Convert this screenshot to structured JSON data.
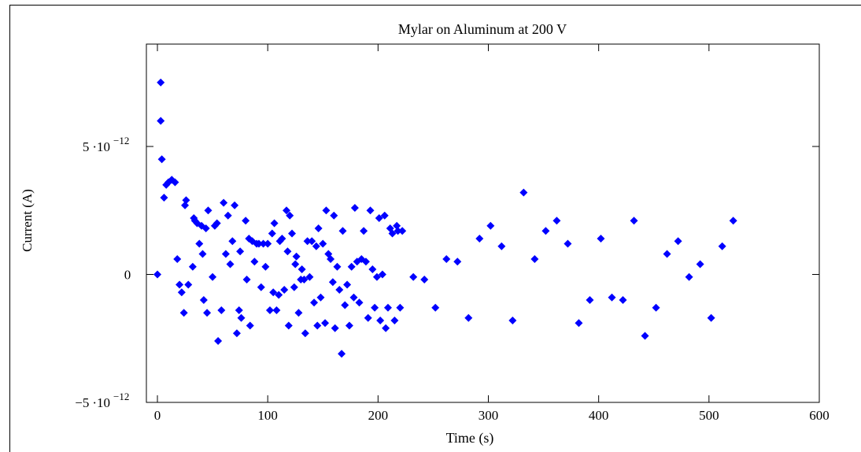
{
  "chart_data": {
    "type": "scatter",
    "title": "Mylar on Aluminum at 200 V",
    "xlabel": "Time (s)",
    "ylabel": "Current (A)",
    "xlim": [
      -10,
      600
    ],
    "ylim": [
      -5e-12,
      9e-12
    ],
    "x_ticks": [
      {
        "value": 0,
        "label": "0"
      },
      {
        "value": 100,
        "label": "100"
      },
      {
        "value": 200,
        "label": "200"
      },
      {
        "value": 300,
        "label": "300"
      },
      {
        "value": 400,
        "label": "400"
      },
      {
        "value": 500,
        "label": "500"
      },
      {
        "value": 600,
        "label": "600"
      }
    ],
    "y_ticks": [
      {
        "value": 5e-12,
        "mantissa": "5",
        "dot": "·",
        "base": "10",
        "exp": "−12"
      },
      {
        "value": 0,
        "mantissa": "0"
      },
      {
        "value": -5e-12,
        "mantissa": "−5",
        "dot": "·",
        "base": "10",
        "exp": "−12"
      }
    ],
    "color": "#0000ff",
    "grid": false,
    "series": [
      {
        "points": [
          [
            0,
            0.0
          ],
          [
            3,
            7.5e-12
          ],
          [
            3,
            6e-12
          ],
          [
            4,
            4.5e-12
          ],
          [
            6,
            3e-12
          ],
          [
            8,
            3.5e-12
          ],
          [
            10,
            3.6e-12
          ],
          [
            13,
            3.7e-12
          ],
          [
            16,
            3.6e-12
          ],
          [
            18,
            6e-13
          ],
          [
            20,
            -4e-13
          ],
          [
            22,
            -7e-13
          ],
          [
            24,
            -1.5e-12
          ],
          [
            25,
            2.7e-12
          ],
          [
            26,
            2.9e-12
          ],
          [
            28,
            -4e-13
          ],
          [
            32,
            3e-13
          ],
          [
            33,
            2.2e-12
          ],
          [
            34,
            2.1e-12
          ],
          [
            36,
            2e-12
          ],
          [
            38,
            1.2e-12
          ],
          [
            40,
            1.9e-12
          ],
          [
            41,
            8e-13
          ],
          [
            42,
            -1e-12
          ],
          [
            44,
            1.8e-12
          ],
          [
            45,
            -1.5e-12
          ],
          [
            46,
            2.5e-12
          ],
          [
            50,
            -1e-13
          ],
          [
            52,
            1.9e-12
          ],
          [
            54,
            2e-12
          ],
          [
            55,
            -2.6e-12
          ],
          [
            58,
            -1.4e-12
          ],
          [
            60,
            2.8e-12
          ],
          [
            62,
            8e-13
          ],
          [
            64,
            2.3e-12
          ],
          [
            66,
            4e-13
          ],
          [
            68,
            1.3e-12
          ],
          [
            70,
            2.7e-12
          ],
          [
            72,
            -2.3e-12
          ],
          [
            74,
            -1.4e-12
          ],
          [
            75,
            9e-13
          ],
          [
            76,
            -1.7e-12
          ],
          [
            80,
            2.1e-12
          ],
          [
            81,
            -2e-13
          ],
          [
            83,
            1.4e-12
          ],
          [
            84,
            -2e-12
          ],
          [
            86,
            1.3e-12
          ],
          [
            88,
            5e-13
          ],
          [
            90,
            1.2e-12
          ],
          [
            92,
            1.2e-12
          ],
          [
            94,
            -5e-13
          ],
          [
            96,
            1.2e-12
          ],
          [
            98,
            3e-13
          ],
          [
            100,
            1.2e-12
          ],
          [
            102,
            -1.4e-12
          ],
          [
            104,
            1.6e-12
          ],
          [
            105,
            -7e-13
          ],
          [
            106,
            2e-12
          ],
          [
            108,
            -1.4e-12
          ],
          [
            110,
            -8e-13
          ],
          [
            111,
            1.3e-12
          ],
          [
            113,
            1.4e-12
          ],
          [
            115,
            -6e-13
          ],
          [
            117,
            2.5e-12
          ],
          [
            118,
            9e-13
          ],
          [
            119,
            -2e-12
          ],
          [
            120,
            2.3e-12
          ],
          [
            122,
            1.6e-12
          ],
          [
            124,
            -5e-13
          ],
          [
            125,
            4e-13
          ],
          [
            126,
            7e-13
          ],
          [
            128,
            -1.5e-12
          ],
          [
            130,
            -2e-13
          ],
          [
            131,
            2e-13
          ],
          [
            133,
            -2e-13
          ],
          [
            134,
            -2.3e-12
          ],
          [
            136,
            1.3e-12
          ],
          [
            138,
            -1e-13
          ],
          [
            140,
            1.3e-12
          ],
          [
            142,
            -1.1e-12
          ],
          [
            144,
            1.1e-12
          ],
          [
            145,
            -2e-12
          ],
          [
            146,
            1.8e-12
          ],
          [
            148,
            -9e-13
          ],
          [
            150,
            1.2e-12
          ],
          [
            152,
            -1.9e-12
          ],
          [
            153,
            2.5e-12
          ],
          [
            155,
            8e-13
          ],
          [
            157,
            6e-13
          ],
          [
            159,
            -3e-13
          ],
          [
            160,
            2.3e-12
          ],
          [
            161,
            -2.1e-12
          ],
          [
            163,
            3e-13
          ],
          [
            165,
            -6e-13
          ],
          [
            167,
            -3.1e-12
          ],
          [
            168,
            1.7e-12
          ],
          [
            170,
            -1.2e-12
          ],
          [
            172,
            -4e-13
          ],
          [
            174,
            -2e-12
          ],
          [
            176,
            3e-13
          ],
          [
            178,
            -9e-13
          ],
          [
            179,
            2.6e-12
          ],
          [
            181,
            5e-13
          ],
          [
            183,
            -1.1e-12
          ],
          [
            185,
            6e-13
          ],
          [
            187,
            1.7e-12
          ],
          [
            189,
            5e-13
          ],
          [
            191,
            -1.7e-12
          ],
          [
            193,
            2.5e-12
          ],
          [
            195,
            2e-13
          ],
          [
            197,
            -1.3e-12
          ],
          [
            199,
            -1e-13
          ],
          [
            201,
            2.2e-12
          ],
          [
            202,
            -1.8e-12
          ],
          [
            204,
            0.0
          ],
          [
            206,
            2.3e-12
          ],
          [
            207,
            -2.1e-12
          ],
          [
            209,
            -1.3e-12
          ],
          [
            211,
            1.8e-12
          ],
          [
            213,
            1.6e-12
          ],
          [
            215,
            -1.8e-12
          ],
          [
            217,
            1.9e-12
          ],
          [
            218,
            1.7e-12
          ],
          [
            220,
            -1.3e-12
          ],
          [
            222,
            1.7e-12
          ],
          [
            232,
            -1e-13
          ],
          [
            242,
            -2e-13
          ],
          [
            252,
            -1.3e-12
          ],
          [
            262,
            6e-13
          ],
          [
            272,
            5e-13
          ],
          [
            282,
            -1.7e-12
          ],
          [
            292,
            1.4e-12
          ],
          [
            302,
            1.9e-12
          ],
          [
            312,
            1.1e-12
          ],
          [
            322,
            -1.8e-12
          ],
          [
            332,
            3.2e-12
          ],
          [
            342,
            6e-13
          ],
          [
            352,
            1.7e-12
          ],
          [
            362,
            2.1e-12
          ],
          [
            372,
            1.2e-12
          ],
          [
            382,
            -1.9e-12
          ],
          [
            392,
            -1e-12
          ],
          [
            402,
            1.4e-12
          ],
          [
            412,
            -9e-13
          ],
          [
            422,
            -1e-12
          ],
          [
            432,
            2.1e-12
          ],
          [
            442,
            -2.4e-12
          ],
          [
            452,
            -1.3e-12
          ],
          [
            462,
            8e-13
          ],
          [
            472,
            1.3e-12
          ],
          [
            482,
            -1e-13
          ],
          [
            492,
            4e-13
          ],
          [
            502,
            -1.7e-12
          ],
          [
            512,
            1.1e-12
          ],
          [
            522,
            2.1e-12
          ]
        ]
      }
    ]
  }
}
